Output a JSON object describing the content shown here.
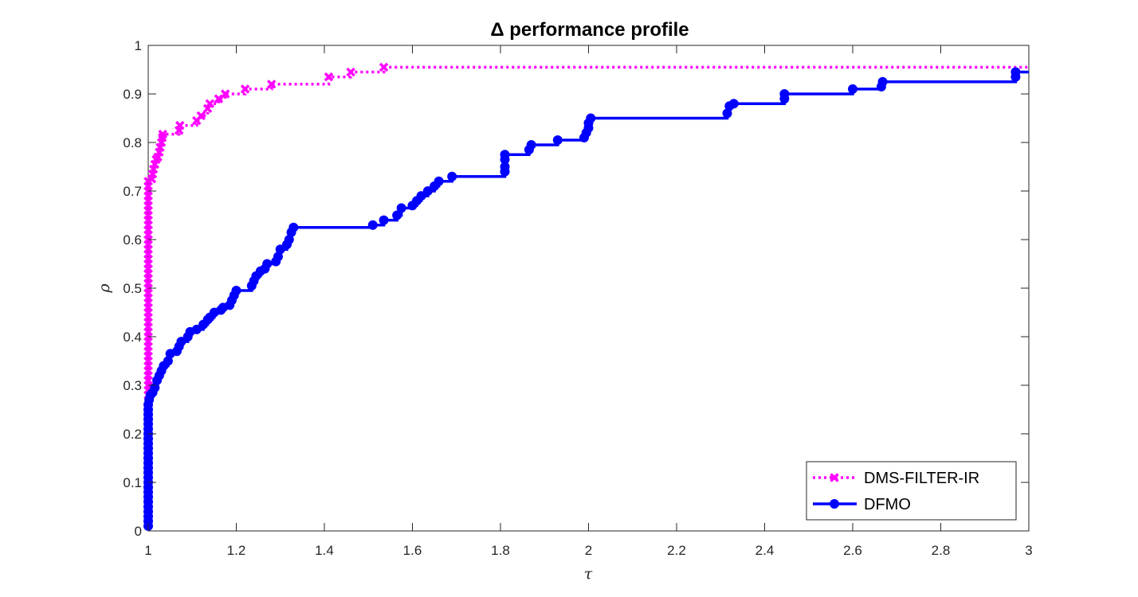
{
  "chart_data": {
    "type": "line",
    "title": "Δ performance profile",
    "xlabel": "τ",
    "ylabel": "ρ",
    "xlim": [
      1,
      3
    ],
    "ylim": [
      0,
      1
    ],
    "xticks": [
      1,
      1.2,
      1.4,
      1.6,
      1.8,
      2,
      2.2,
      2.4,
      2.6,
      2.8,
      3
    ],
    "xtick_labels": [
      "1",
      "1.2",
      "1.4",
      "1.6",
      "1.8",
      "2",
      "2.2",
      "2.4",
      "2.6",
      "2.8",
      "3"
    ],
    "yticks": [
      0,
      0.1,
      0.2,
      0.3,
      0.4,
      0.5,
      0.6,
      0.7,
      0.8,
      0.9,
      1
    ],
    "ytick_labels": [
      "0",
      "0.1",
      "0.2",
      "0.3",
      "0.4",
      "0.5",
      "0.6",
      "0.7",
      "0.8",
      "0.9",
      "1"
    ],
    "grid": false,
    "legend_position": "bottom-right",
    "series": [
      {
        "name": "DMS-FILTER-IR",
        "color": "#ff00ff",
        "line_style": "dotted",
        "marker": "x",
        "steps": [
          [
            1.0,
            0.28
          ],
          [
            1.0,
            0.29
          ],
          [
            1.0,
            0.3
          ],
          [
            1.0,
            0.31
          ],
          [
            1.0,
            0.32
          ],
          [
            1.0,
            0.33
          ],
          [
            1.0,
            0.34
          ],
          [
            1.0,
            0.35
          ],
          [
            1.0,
            0.36
          ],
          [
            1.0,
            0.37
          ],
          [
            1.0,
            0.38
          ],
          [
            1.0,
            0.39
          ],
          [
            1.0,
            0.4
          ],
          [
            1.0,
            0.41
          ],
          [
            1.0,
            0.42
          ],
          [
            1.0,
            0.43
          ],
          [
            1.0,
            0.44
          ],
          [
            1.0,
            0.45
          ],
          [
            1.0,
            0.46
          ],
          [
            1.0,
            0.47
          ],
          [
            1.0,
            0.48
          ],
          [
            1.0,
            0.49
          ],
          [
            1.0,
            0.5
          ],
          [
            1.0,
            0.51
          ],
          [
            1.0,
            0.52
          ],
          [
            1.0,
            0.53
          ],
          [
            1.0,
            0.54
          ],
          [
            1.0,
            0.55
          ],
          [
            1.0,
            0.56
          ],
          [
            1.0,
            0.57
          ],
          [
            1.0,
            0.58
          ],
          [
            1.0,
            0.59
          ],
          [
            1.0,
            0.6
          ],
          [
            1.0,
            0.61
          ],
          [
            1.0,
            0.62
          ],
          [
            1.0,
            0.63
          ],
          [
            1.0,
            0.64
          ],
          [
            1.0,
            0.65
          ],
          [
            1.0,
            0.66
          ],
          [
            1.0,
            0.67
          ],
          [
            1.0,
            0.68
          ],
          [
            1.0,
            0.69
          ],
          [
            1.0,
            0.7
          ],
          [
            1.0,
            0.71
          ],
          [
            1.0,
            0.72
          ],
          [
            1.008,
            0.725
          ],
          [
            1.01,
            0.735
          ],
          [
            1.012,
            0.745
          ],
          [
            1.015,
            0.755
          ],
          [
            1.018,
            0.765
          ],
          [
            1.022,
            0.77
          ],
          [
            1.025,
            0.78
          ],
          [
            1.027,
            0.79
          ],
          [
            1.03,
            0.8
          ],
          [
            1.032,
            0.81
          ],
          [
            1.033,
            0.817
          ],
          [
            1.07,
            0.825
          ],
          [
            1.072,
            0.835
          ],
          [
            1.11,
            0.845
          ],
          [
            1.12,
            0.855
          ],
          [
            1.135,
            0.87
          ],
          [
            1.14,
            0.88
          ],
          [
            1.16,
            0.89
          ],
          [
            1.175,
            0.9
          ],
          [
            1.22,
            0.91
          ],
          [
            1.28,
            0.92
          ],
          [
            1.41,
            0.935
          ],
          [
            1.46,
            0.945
          ],
          [
            1.535,
            0.955
          ],
          [
            3.0,
            0.957
          ]
        ]
      },
      {
        "name": "DFMO",
        "color": "#0000ff",
        "line_style": "solid",
        "marker": "o",
        "steps": [
          [
            1.0,
            0.01
          ],
          [
            1.0,
            0.02
          ],
          [
            1.0,
            0.03
          ],
          [
            1.0,
            0.04
          ],
          [
            1.0,
            0.05
          ],
          [
            1.0,
            0.06
          ],
          [
            1.0,
            0.07
          ],
          [
            1.0,
            0.08
          ],
          [
            1.0,
            0.09
          ],
          [
            1.0,
            0.1
          ],
          [
            1.0,
            0.11
          ],
          [
            1.0,
            0.12
          ],
          [
            1.0,
            0.13
          ],
          [
            1.0,
            0.14
          ],
          [
            1.0,
            0.15
          ],
          [
            1.0,
            0.16
          ],
          [
            1.0,
            0.17
          ],
          [
            1.0,
            0.18
          ],
          [
            1.0,
            0.19
          ],
          [
            1.0,
            0.2
          ],
          [
            1.0,
            0.21
          ],
          [
            1.0,
            0.22
          ],
          [
            1.0,
            0.23
          ],
          [
            1.0,
            0.24
          ],
          [
            1.0,
            0.25
          ],
          [
            1.0,
            0.26
          ],
          [
            1.002,
            0.27
          ],
          [
            1.005,
            0.28
          ],
          [
            1.01,
            0.285
          ],
          [
            1.015,
            0.295
          ],
          [
            1.02,
            0.31
          ],
          [
            1.025,
            0.32
          ],
          [
            1.03,
            0.33
          ],
          [
            1.035,
            0.34
          ],
          [
            1.045,
            0.35
          ],
          [
            1.05,
            0.365
          ],
          [
            1.065,
            0.37
          ],
          [
            1.07,
            0.38
          ],
          [
            1.075,
            0.39
          ],
          [
            1.09,
            0.4
          ],
          [
            1.095,
            0.41
          ],
          [
            1.11,
            0.415
          ],
          [
            1.125,
            0.425
          ],
          [
            1.135,
            0.435
          ],
          [
            1.14,
            0.44
          ],
          [
            1.15,
            0.45
          ],
          [
            1.165,
            0.455
          ],
          [
            1.17,
            0.46
          ],
          [
            1.185,
            0.465
          ],
          [
            1.19,
            0.475
          ],
          [
            1.195,
            0.485
          ],
          [
            1.2,
            0.495
          ],
          [
            1.235,
            0.505
          ],
          [
            1.24,
            0.515
          ],
          [
            1.245,
            0.525
          ],
          [
            1.255,
            0.535
          ],
          [
            1.265,
            0.54
          ],
          [
            1.27,
            0.55
          ],
          [
            1.29,
            0.555
          ],
          [
            1.295,
            0.565
          ],
          [
            1.3,
            0.58
          ],
          [
            1.315,
            0.59
          ],
          [
            1.32,
            0.6
          ],
          [
            1.325,
            0.615
          ],
          [
            1.33,
            0.625
          ],
          [
            1.51,
            0.63
          ],
          [
            1.535,
            0.64
          ],
          [
            1.565,
            0.65
          ],
          [
            1.575,
            0.665
          ],
          [
            1.6,
            0.67
          ],
          [
            1.61,
            0.68
          ],
          [
            1.62,
            0.69
          ],
          [
            1.635,
            0.7
          ],
          [
            1.65,
            0.71
          ],
          [
            1.66,
            0.72
          ],
          [
            1.69,
            0.73
          ],
          [
            1.81,
            0.74
          ],
          [
            1.81,
            0.75
          ],
          [
            1.81,
            0.765
          ],
          [
            1.81,
            0.775
          ],
          [
            1.865,
            0.785
          ],
          [
            1.87,
            0.795
          ],
          [
            1.93,
            0.805
          ],
          [
            1.99,
            0.81
          ],
          [
            1.995,
            0.82
          ],
          [
            2.0,
            0.83
          ],
          [
            2.0,
            0.84
          ],
          [
            2.005,
            0.85
          ],
          [
            2.315,
            0.86
          ],
          [
            2.32,
            0.875
          ],
          [
            2.33,
            0.88
          ],
          [
            2.445,
            0.89
          ],
          [
            2.445,
            0.9
          ],
          [
            2.6,
            0.91
          ],
          [
            2.665,
            0.915
          ],
          [
            2.668,
            0.925
          ],
          [
            2.97,
            0.935
          ],
          [
            2.97,
            0.945
          ],
          [
            3.0,
            0.945
          ]
        ]
      }
    ]
  }
}
